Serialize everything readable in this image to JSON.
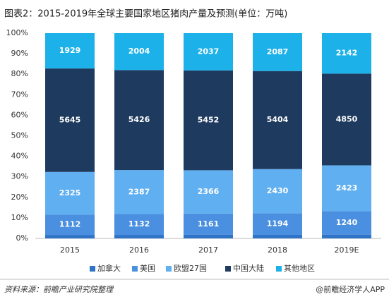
{
  "chart_data": {
    "type": "stacked_percent_bar",
    "title": "图表2：2015-2019年全球主要国家地区猪肉产量及预测(单位：万吨)",
    "categories": [
      "2015",
      "2016",
      "2017",
      "2018",
      "2019E"
    ],
    "series": [
      {
        "name": "加拿大",
        "color": "#2f74c6",
        "values": [
          190,
          190,
          195,
          195,
          200
        ],
        "show_labels": false
      },
      {
        "name": "美国",
        "color": "#4a8fe0",
        "values": [
          1112,
          1132,
          1161,
          1194,
          1240
        ],
        "show_labels": true
      },
      {
        "name": "欧盟27国",
        "color": "#60aff0",
        "values": [
          2325,
          2387,
          2366,
          2430,
          2423
        ],
        "show_labels": true
      },
      {
        "name": "中国大陆",
        "color": "#1f3a5f",
        "values": [
          5645,
          5426,
          5452,
          5404,
          4850
        ],
        "show_labels": true
      },
      {
        "name": "其他地区",
        "color": "#1db1e9",
        "values": [
          1929,
          2004,
          2037,
          2087,
          2142
        ],
        "show_labels": true
      }
    ],
    "ylim": [
      0,
      100
    ],
    "yticks": [
      {
        "value": 0,
        "label": "0%"
      },
      {
        "value": 10,
        "label": "10%"
      },
      {
        "value": 20,
        "label": "20%"
      },
      {
        "value": 30,
        "label": "30%"
      },
      {
        "value": 40,
        "label": "40%"
      },
      {
        "value": 50,
        "label": "50%"
      },
      {
        "value": 60,
        "label": "60%"
      },
      {
        "value": 70,
        "label": "70%"
      },
      {
        "value": 80,
        "label": "80%"
      },
      {
        "value": 90,
        "label": "90%"
      },
      {
        "value": 100,
        "label": "100%"
      }
    ],
    "legend": "bottom",
    "source": "资料来源：前瞻产业研究院整理",
    "credit": "@前瞻经济学人APP"
  }
}
